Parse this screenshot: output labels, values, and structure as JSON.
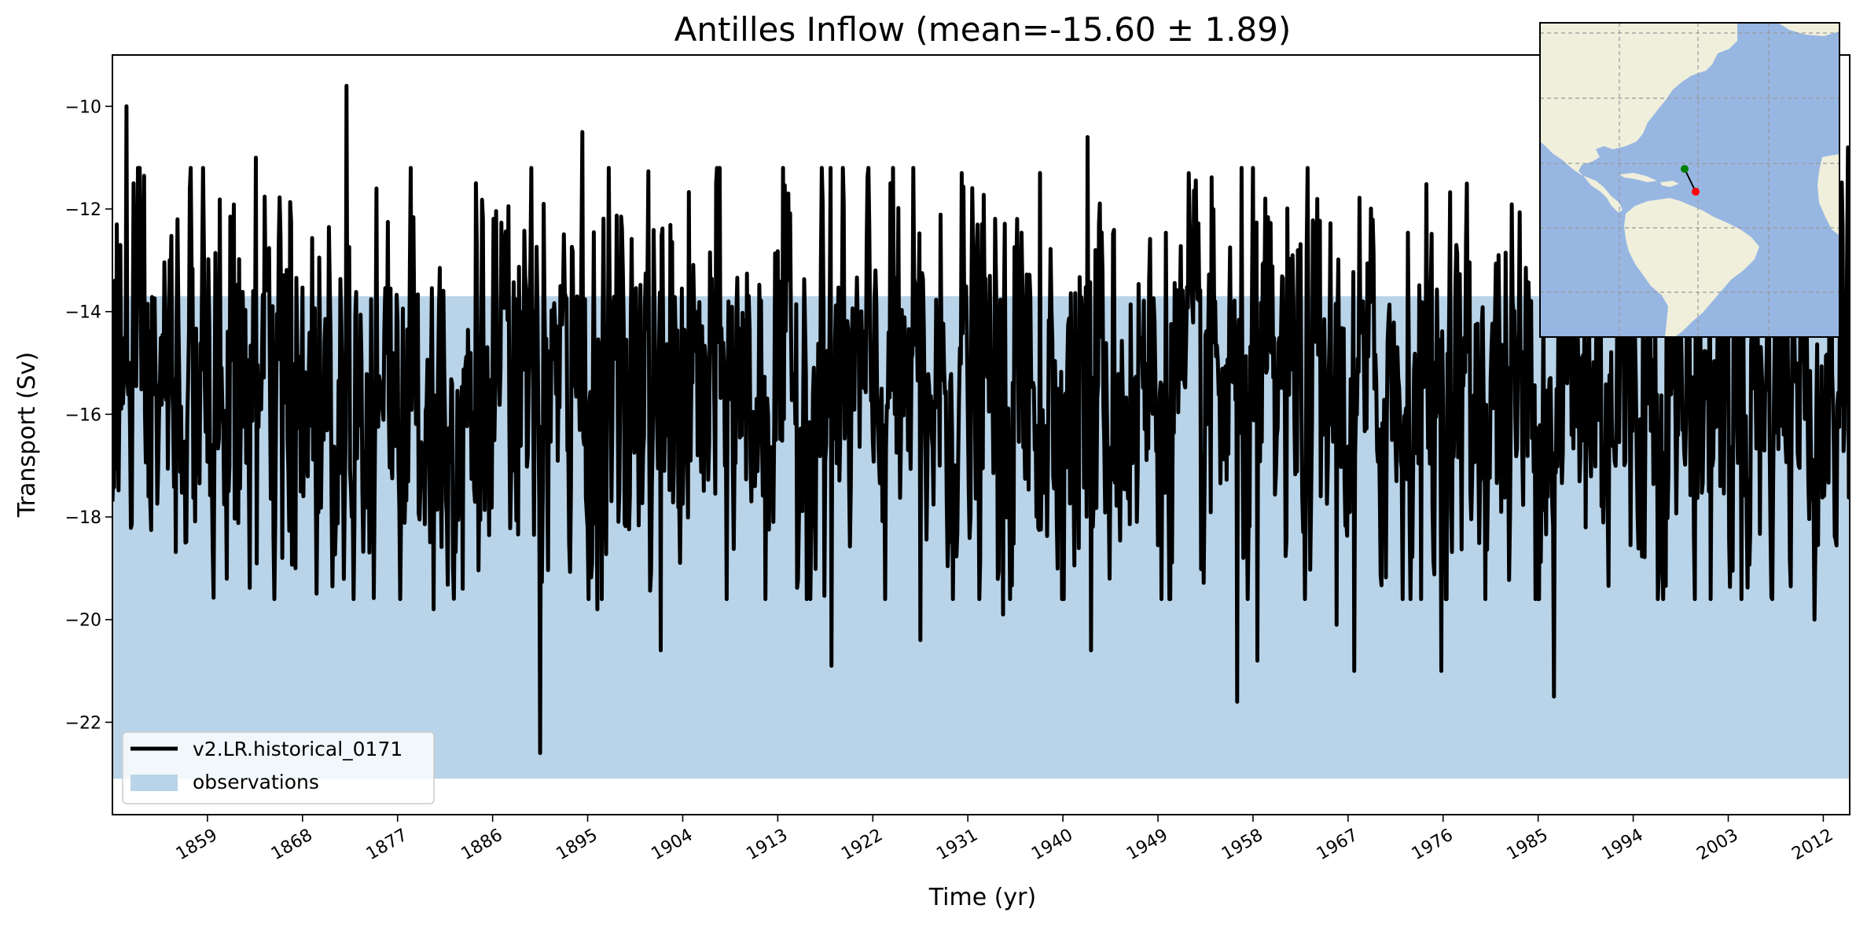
{
  "chart_data": {
    "type": "line",
    "title": "Antilles Inflow (mean=-15.60 ± 1.89)",
    "xlabel": "Time (yr)",
    "ylabel": "Transport (Sv)",
    "xlim": [
      1850,
      2014.5
    ],
    "ylim": [
      -23.8,
      -9.0
    ],
    "x_ticks": [
      1859,
      1868,
      1877,
      1886,
      1895,
      1904,
      1913,
      1922,
      1931,
      1940,
      1949,
      1958,
      1967,
      1976,
      1985,
      1994,
      2003,
      2012
    ],
    "y_ticks": [
      -10,
      -12,
      -14,
      -16,
      -18,
      -20,
      -22
    ],
    "grid": false,
    "legend_position": "lower-left",
    "observations_band": {
      "name": "observations",
      "y_min": -23.1,
      "y_max": -13.7,
      "color": "#b9d4e8"
    },
    "series": [
      {
        "name": "v2.LR.historical_0171",
        "color": "#000000",
        "mean": -15.6,
        "std": 1.89,
        "start_year": 1850,
        "end_year": 2014,
        "samples_per_year": 12,
        "key_points": [
          [
            1850.0,
            -17.7
          ],
          [
            1850.4,
            -12.3
          ],
          [
            1851.3,
            -10.0
          ],
          [
            1852.0,
            -11.5
          ],
          [
            1853.4,
            -17.6
          ],
          [
            1856.9,
            -18.5
          ],
          [
            1856.2,
            -12.2
          ],
          [
            1863.6,
            -11.0
          ],
          [
            1866.1,
            -18.8
          ],
          [
            1867.3,
            -19.0
          ],
          [
            1872.2,
            -9.6
          ],
          [
            1875.0,
            -11.6
          ],
          [
            1880.4,
            -19.8
          ],
          [
            1883.2,
            -19.4
          ],
          [
            1884.4,
            -11.5
          ],
          [
            1890.5,
            -22.6
          ],
          [
            1890.8,
            -11.9
          ],
          [
            1894.5,
            -10.5
          ],
          [
            1895.9,
            -19.8
          ],
          [
            1901.9,
            -20.6
          ],
          [
            1907.2,
            -11.5
          ],
          [
            1918.0,
            -11.2
          ],
          [
            1918.1,
            -20.9
          ],
          [
            1923.7,
            -11.5
          ],
          [
            1926.5,
            -20.4
          ],
          [
            1930.4,
            -11.3
          ],
          [
            1934.3,
            -19.9
          ],
          [
            1937.8,
            -11.3
          ],
          [
            1942.3,
            -10.6
          ],
          [
            1942.7,
            -20.6
          ],
          [
            1956.5,
            -21.6
          ],
          [
            1958.4,
            -20.8
          ],
          [
            1965.9,
            -20.1
          ],
          [
            1967.6,
            -21.0
          ],
          [
            1975.8,
            -21.0
          ],
          [
            1986.5,
            -21.5
          ],
          [
            2001.3,
            -19.6
          ],
          [
            2011.2,
            -20.0
          ],
          [
            2014.3,
            -10.8
          ]
        ]
      }
    ],
    "inset_map": {
      "description_colors": {
        "ocean": "#97b6e2",
        "land": "#efefdc",
        "grid": "#999999"
      },
      "section_points": [
        {
          "lon": -70.0,
          "lat": 18.5,
          "color": "#008000"
        },
        {
          "lon": -65.0,
          "lat": 10.5,
          "color": "#ff0000"
        }
      ]
    }
  }
}
